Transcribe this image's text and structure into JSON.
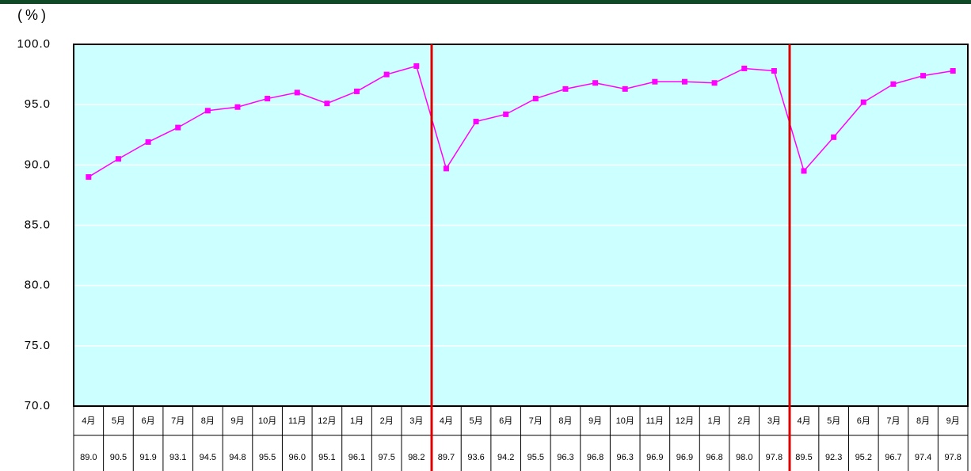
{
  "chart_data": {
    "type": "line",
    "y_label": "(%)",
    "categories": [
      "4月",
      "5月",
      "6月",
      "7月",
      "8月",
      "9月",
      "10月",
      "11月",
      "12月",
      "1月",
      "2月",
      "3月",
      "4月",
      "5月",
      "6月",
      "7月",
      "8月",
      "9月",
      "10月",
      "11月",
      "12月",
      "1月",
      "2月",
      "3月",
      "4月",
      "5月",
      "6月",
      "7月",
      "8月",
      "9月"
    ],
    "values": [
      89.0,
      90.5,
      91.9,
      93.1,
      94.5,
      94.8,
      95.5,
      96.0,
      95.1,
      96.1,
      97.5,
      98.2,
      89.7,
      93.6,
      94.2,
      95.5,
      96.3,
      96.8,
      96.3,
      96.9,
      96.9,
      96.8,
      98.0,
      97.8,
      89.5,
      92.3,
      95.2,
      96.7,
      97.4,
      97.8
    ],
    "value_labels": [
      "89.0",
      "90.5",
      "91.9",
      "93.1",
      "94.5",
      "94.8",
      "95.5",
      "96.0",
      "95.1",
      "96.1",
      "97.5",
      "98.2",
      "89.7",
      "93.6",
      "94.2",
      "95.5",
      "96.3",
      "96.8",
      "96.3",
      "96.9",
      "96.9",
      "96.8",
      "98.0",
      "97.8",
      "89.5",
      "92.3",
      "95.2",
      "96.7",
      "97.4",
      "97.8"
    ],
    "color": "#ff00ff",
    "ylim": [
      70,
      100
    ],
    "yticks": [
      {
        "value": 70,
        "label": "70.0"
      },
      {
        "value": 75,
        "label": "75.0"
      },
      {
        "value": 80,
        "label": "80.0"
      },
      {
        "value": 85,
        "label": "85.0"
      },
      {
        "value": 90,
        "label": "90.0"
      },
      {
        "value": 95,
        "label": "95.0"
      },
      {
        "value": 100,
        "label": "100.0"
      }
    ],
    "grid": true
  }
}
